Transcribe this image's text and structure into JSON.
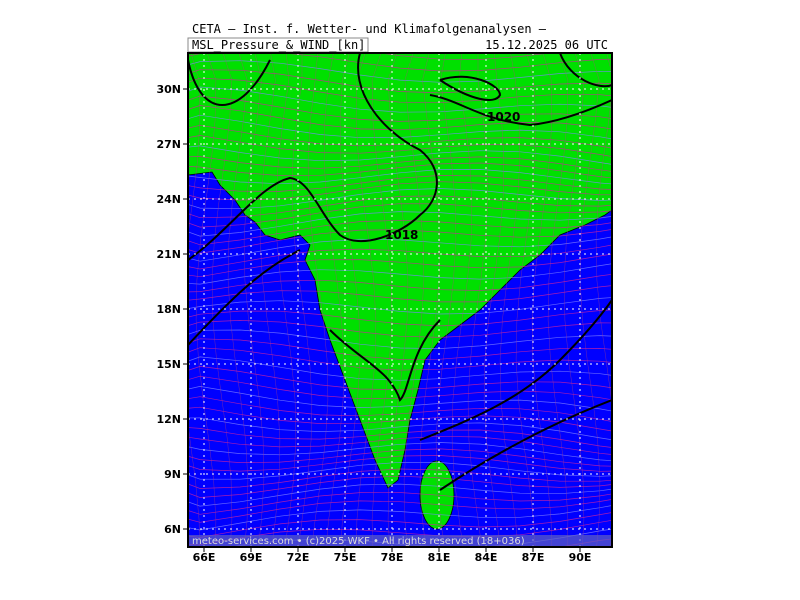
{
  "header": {
    "title": "CETA — Inst. f. Wetter- und Klimafolgenanalysen —",
    "field": "MSL_Pressure_&_WIND_[kn]",
    "valid": "15.12.2025 06 UTC"
  },
  "lon_labels": [
    "66E",
    "69E",
    "72E",
    "75E",
    "78E",
    "81E",
    "84E",
    "87E",
    "90E"
  ],
  "lat_labels": [
    "30N",
    "27N",
    "24N",
    "21N",
    "18N",
    "15N",
    "12N",
    "9N",
    "6N"
  ],
  "isobar_labels": [
    "1020",
    "1018"
  ],
  "footer": "meteo-services.com • (c)2025 WKF • All rights reserved (18+036)"
}
